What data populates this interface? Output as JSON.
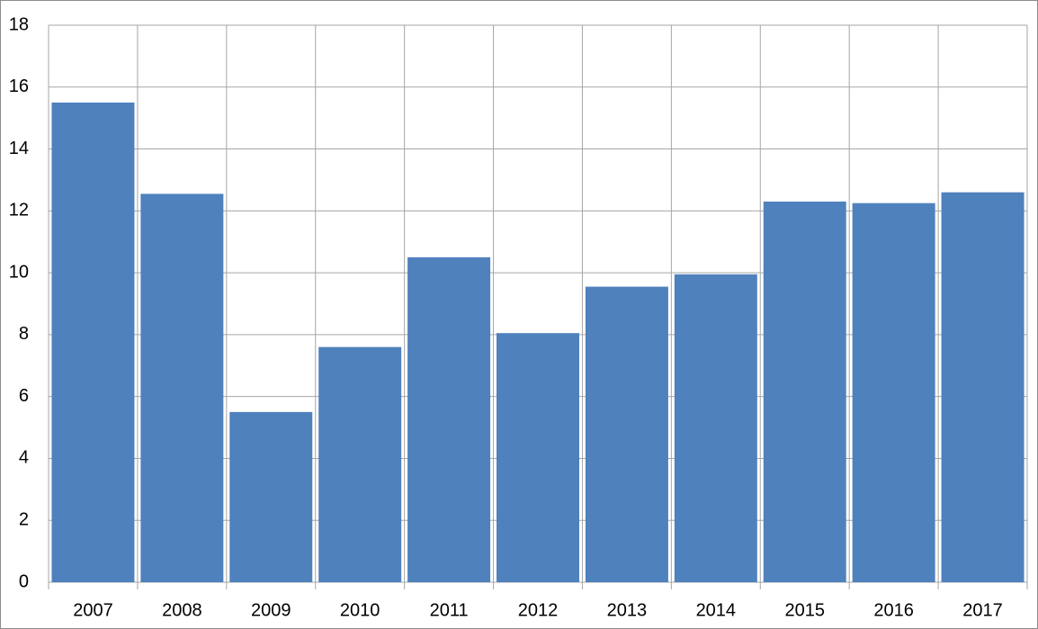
{
  "chart_data": {
    "type": "bar",
    "categories": [
      "2007",
      "2008",
      "2009",
      "2010",
      "2011",
      "2012",
      "2013",
      "2014",
      "2015",
      "2016",
      "2017"
    ],
    "values": [
      15.5,
      12.55,
      5.5,
      7.6,
      10.5,
      8.05,
      9.55,
      9.95,
      12.3,
      12.25,
      12.6
    ],
    "color": "#4f81bd",
    "ylim": [
      0,
      18
    ],
    "yticks": [
      0,
      2,
      4,
      6,
      8,
      10,
      12,
      14,
      16,
      18
    ],
    "grid": true
  }
}
